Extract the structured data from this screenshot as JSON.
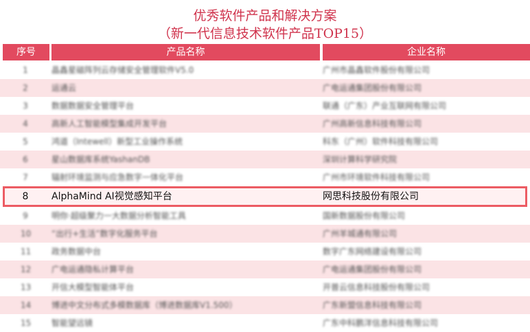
{
  "title": "优秀软件产品和解决方案",
  "subtitle": "（新一代信息技术软件产品TOP15）",
  "columns": [
    "序号",
    "产品名称",
    "企业名称"
  ],
  "highlight_color": "#ec5b63",
  "header_color": "#e24a5f",
  "rows": [
    {
      "no": "1",
      "product": "晶鑫星磁阵列云存储安全管理软件V5.0",
      "company": "广州市晶鑫软件股份有限公司"
    },
    {
      "no": "2",
      "product": "运通云",
      "company": "广电运通集团股份有限公司"
    },
    {
      "no": "3",
      "product": "数据数据安全管理平台",
      "company": "联通（广东）产业互联网有限公司"
    },
    {
      "no": "4",
      "product": "高新人工智能模型集成开发平台",
      "company": "广州高新信息科技有限公司"
    },
    {
      "no": "5",
      "product": "鸿道（Intewell）新型工业操作系统",
      "company": "科东（广州）软件科技有限公司"
    },
    {
      "no": "6",
      "product": "星山数据库系统YashanDB",
      "company": "深圳计算科学研究院"
    },
    {
      "no": "7",
      "product": "辐射环境监测与应急数字一体化平台",
      "company": "广州市环境软件科技有限公司"
    },
    {
      "no": "8",
      "product": "AlphaMind AI视觉感知平台",
      "company": "网思科技股份有限公司"
    },
    {
      "no": "9",
      "product": "明你·超级聚力一大数据分析智能工具",
      "company": "国新数据股份有限公司"
    },
    {
      "no": "10",
      "product": "“出行+生活”数字化服务平台",
      "company": "广州羊城通有限公司"
    },
    {
      "no": "11",
      "product": "政务数据中台",
      "company": "数字广东网络建设有限公司"
    },
    {
      "no": "12",
      "product": "广电运通隐私计算平台",
      "company": "广电运通集团股份有限公司"
    },
    {
      "no": "13",
      "product": "开信大模型智能体平台",
      "company": "开普云信息科技股份有限公司"
    },
    {
      "no": "14",
      "product": "博进中文分布式多模数据库（博进数据库V1.500）",
      "company": "广东新盟信息科技有限公司"
    },
    {
      "no": "15",
      "product": "智能望远镜",
      "company": "广东中科鹏洋信息科技有限公司"
    }
  ]
}
